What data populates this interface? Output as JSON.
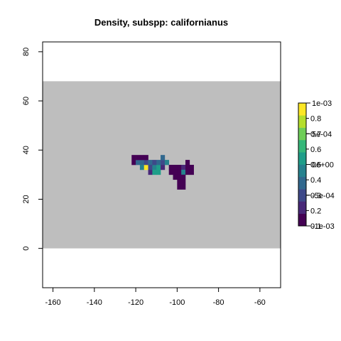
{
  "chart_data": {
    "type": "heatmap",
    "title": "Density, subspp: californianus",
    "xlabel": "",
    "ylabel": "",
    "xlim": [
      -165,
      -50
    ],
    "ylim": [
      -16,
      84
    ],
    "x_ticks": [
      -160,
      -140,
      -120,
      -100,
      -80,
      -60
    ],
    "y_ticks": [
      0,
      20,
      40,
      60,
      80
    ],
    "background_band": {
      "xmin": -165,
      "xmax": -50,
      "ymin": 0,
      "ymax": 68,
      "color": "#bebebe"
    },
    "cell_size": 2,
    "cells": [
      {
        "x": -122,
        "y": 36,
        "v": 0.12
      },
      {
        "x": -122,
        "y": 34,
        "v": 0.14
      },
      {
        "x": -120,
        "y": 34,
        "v": 0.35
      },
      {
        "x": -120,
        "y": 36,
        "v": 0.13
      },
      {
        "x": -118,
        "y": 34,
        "v": 0.4
      },
      {
        "x": -118,
        "y": 36,
        "v": 0.15
      },
      {
        "x": -118,
        "y": 32,
        "v": 0.45
      },
      {
        "x": -116,
        "y": 32,
        "v": 0.95
      },
      {
        "x": -116,
        "y": 34,
        "v": 0.3
      },
      {
        "x": -116,
        "y": 36,
        "v": 0.14
      },
      {
        "x": -114,
        "y": 34,
        "v": 0.38
      },
      {
        "x": -114,
        "y": 30,
        "v": 0.22
      },
      {
        "x": -114,
        "y": 32,
        "v": 0.3
      },
      {
        "x": -112,
        "y": 32,
        "v": 0.48
      },
      {
        "x": -112,
        "y": 30,
        "v": 0.5
      },
      {
        "x": -112,
        "y": 34,
        "v": 0.32
      },
      {
        "x": -110,
        "y": 32,
        "v": 0.5
      },
      {
        "x": -110,
        "y": 30,
        "v": 0.55
      },
      {
        "x": -110,
        "y": 34,
        "v": 0.34
      },
      {
        "x": -108,
        "y": 32,
        "v": 0.22
      },
      {
        "x": -108,
        "y": 34,
        "v": 0.3
      },
      {
        "x": -108,
        "y": 36,
        "v": 0.42
      },
      {
        "x": -106,
        "y": 34,
        "v": 0.45
      },
      {
        "x": -104,
        "y": 32,
        "v": 0.1
      },
      {
        "x": -104,
        "y": 30,
        "v": 0.1
      },
      {
        "x": -102,
        "y": 32,
        "v": 0.1
      },
      {
        "x": -102,
        "y": 30,
        "v": 0.1
      },
      {
        "x": -102,
        "y": 28,
        "v": 0.11
      },
      {
        "x": -100,
        "y": 32,
        "v": 0.18
      },
      {
        "x": -100,
        "y": 30,
        "v": 0.12
      },
      {
        "x": -100,
        "y": 28,
        "v": 0.11
      },
      {
        "x": -100,
        "y": 26,
        "v": 0.1
      },
      {
        "x": -100,
        "y": 24,
        "v": 0.1
      },
      {
        "x": -98,
        "y": 32,
        "v": 0.22
      },
      {
        "x": -98,
        "y": 30,
        "v": 0.45
      },
      {
        "x": -98,
        "y": 28,
        "v": 0.1
      },
      {
        "x": -98,
        "y": 26,
        "v": 0.1
      },
      {
        "x": -98,
        "y": 24,
        "v": 0.1
      },
      {
        "x": -96,
        "y": 32,
        "v": 0.15
      },
      {
        "x": -96,
        "y": 30,
        "v": 0.12
      },
      {
        "x": -96,
        "y": 34,
        "v": 0.11
      },
      {
        "x": -94,
        "y": 32,
        "v": 0.14
      },
      {
        "x": -94,
        "y": 30,
        "v": 0.12
      }
    ],
    "colorbar": {
      "palette": [
        "#440154",
        "#482878",
        "#3e4989",
        "#31688e",
        "#26828e",
        "#1f9e89",
        "#35b779",
        "#6ece58",
        "#b5de2b",
        "#fde725"
      ],
      "vmin": 0.1,
      "vmax": 0.9,
      "labels_left_scale": [
        "0.1",
        "0.2",
        "0.3",
        "0.4",
        "0.5",
        "0.6",
        "0.7",
        "0.8"
      ],
      "labels_left_values": [
        0.1,
        0.2,
        0.3,
        0.4,
        0.5,
        0.6,
        0.7,
        0.8
      ],
      "labels_right_scale": [
        "-1e-03",
        "-5e-04",
        "0e+00",
        "5e-04",
        "1e-03"
      ],
      "labels_right_values": [
        0.1,
        0.3,
        0.5,
        0.7,
        0.9
      ]
    }
  }
}
